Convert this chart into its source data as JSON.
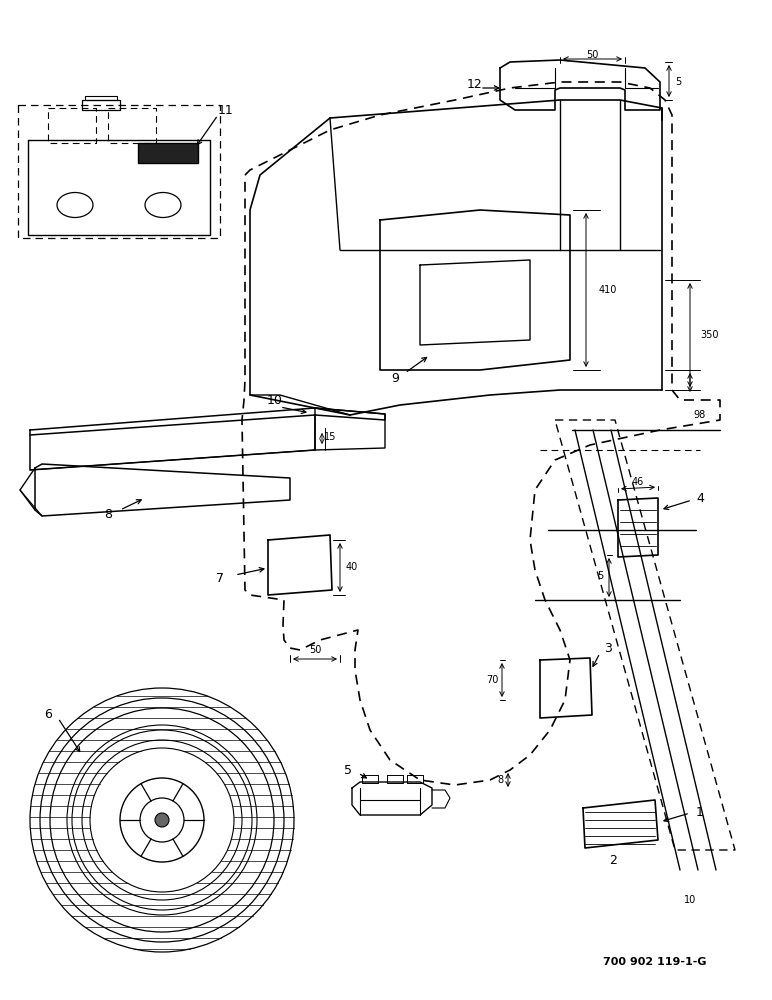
{
  "bg_color": "#ffffff",
  "lc": "#000000",
  "footer": "700 902 119-1-G",
  "figsize": [
    7.72,
    10.0
  ],
  "dpi": 100
}
